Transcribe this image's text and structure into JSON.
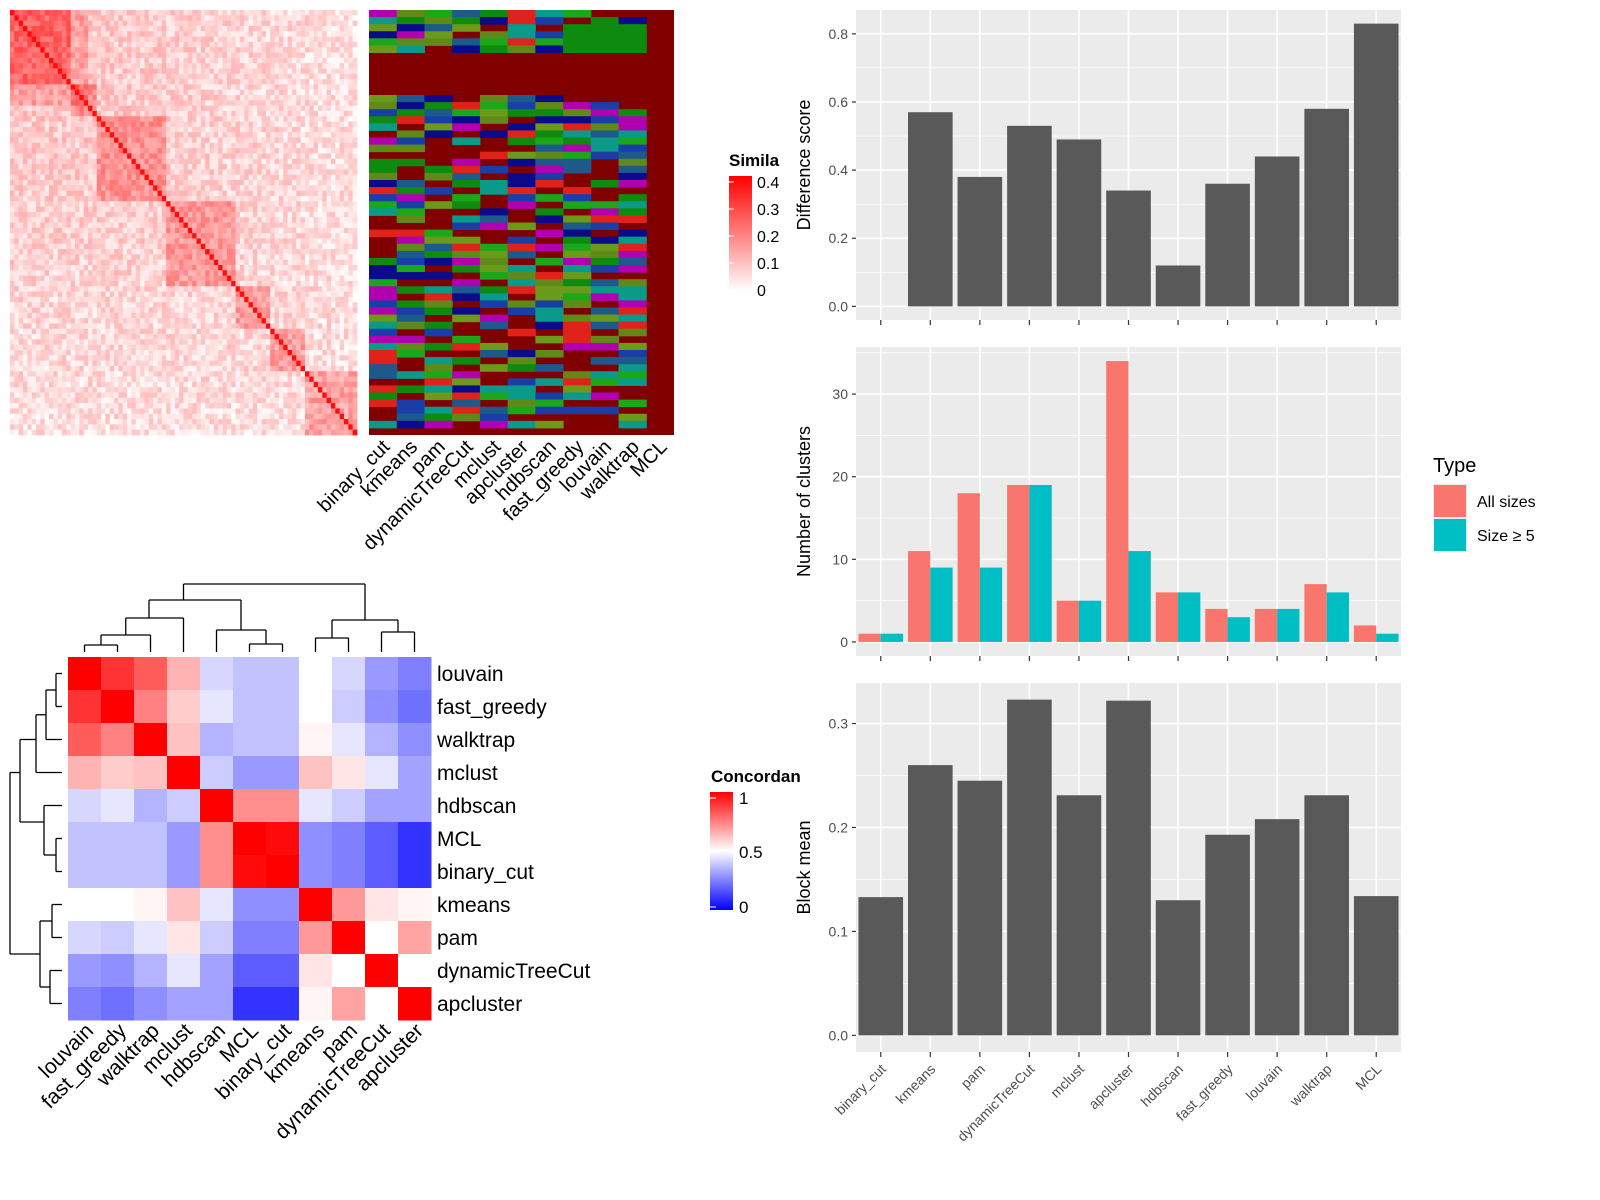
{
  "similarity_heatmap": {
    "legend_title": "Similarity",
    "legend_ticks": [
      "0.4",
      "0.3",
      "0.2",
      "0.1",
      "0"
    ],
    "methods": [
      "binary_cut",
      "kmeans",
      "pam",
      "dynamicTreeCut",
      "mclust",
      "apcluster",
      "hdbscan",
      "fast_greedy",
      "louvain",
      "walktrap",
      "MCL"
    ]
  },
  "concordance": {
    "legend_title": "Concordance",
    "legend_ticks": [
      "1",
      "0.5",
      "0"
    ],
    "row_labels": [
      "louvain",
      "fast_greedy",
      "walktrap",
      "mclust",
      "hdbscan",
      "MCL",
      "binary_cut",
      "kmeans",
      "pam",
      "dynamicTreeCut",
      "apcluster"
    ],
    "col_labels": [
      "louvain",
      "fast_greedy",
      "walktrap",
      "mclust",
      "hdbscan",
      "MCL",
      "binary_cut",
      "kmeans",
      "pam",
      "dynamicTreeCut",
      "apcluster"
    ]
  },
  "chart_data": [
    {
      "type": "bar",
      "categories": [
        "binary_cut",
        "kmeans",
        "pam",
        "dynamicTreeCut",
        "mclust",
        "apcluster",
        "hdbscan",
        "fast_greedy",
        "louvain",
        "walktrap",
        "MCL"
      ],
      "values": [
        0,
        0.57,
        0.38,
        0.53,
        0.49,
        0.34,
        0.12,
        0.36,
        0.44,
        0.58,
        0.83
      ],
      "ylabel": "Difference score",
      "yticks": [
        "0.0",
        "0.2",
        "0.4",
        "0.6",
        "0.8"
      ],
      "ylim": [
        -0.04,
        0.87
      ],
      "color": "#595959"
    },
    {
      "type": "bar",
      "categories": [
        "binary_cut",
        "kmeans",
        "pam",
        "dynamicTreeCut",
        "mclust",
        "apcluster",
        "hdbscan",
        "fast_greedy",
        "louvain",
        "walktrap",
        "MCL"
      ],
      "series": [
        {
          "name": "All sizes",
          "values": [
            1,
            11,
            18,
            19,
            5,
            34,
            6,
            4,
            4,
            7,
            2
          ],
          "color": "#F8766D"
        },
        {
          "name": "Size ≥ 5",
          "values": [
            1,
            9,
            9,
            19,
            5,
            11,
            6,
            3,
            4,
            6,
            1
          ],
          "color": "#00BFC4"
        }
      ],
      "ylabel": "Number of clusters",
      "yticks": [
        "0",
        "10",
        "20",
        "30"
      ],
      "ylim": [
        -1.7,
        35.7
      ],
      "legend_title": "Type",
      "legend_position": "right"
    },
    {
      "type": "bar",
      "categories": [
        "binary_cut",
        "kmeans",
        "pam",
        "dynamicTreeCut",
        "mclust",
        "apcluster",
        "hdbscan",
        "fast_greedy",
        "louvain",
        "walktrap",
        "MCL"
      ],
      "values": [
        0.133,
        0.26,
        0.245,
        0.323,
        0.231,
        0.322,
        0.13,
        0.193,
        0.208,
        0.231,
        0.134
      ],
      "ylabel": "Block mean",
      "yticks": [
        "0.0",
        "0.1",
        "0.2",
        "0.3"
      ],
      "ylim": [
        -0.016,
        0.339
      ],
      "color": "#595959"
    }
  ]
}
